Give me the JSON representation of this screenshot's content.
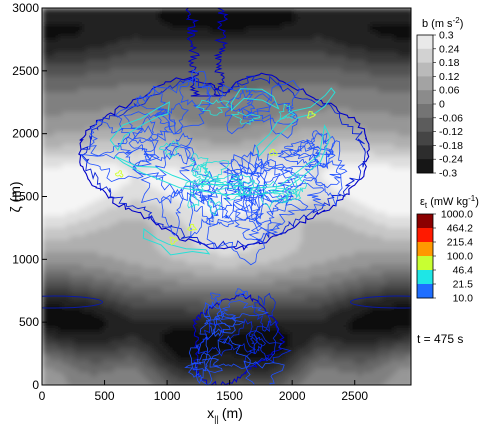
{
  "chart_data": {
    "type": "heatmap",
    "xlabel": "x",
    "xlabel_sub": "||",
    "xlabel_unit": "(m)",
    "ylabel": "ζ (m)",
    "xlim": [
      0,
      2950
    ],
    "ylim": [
      0,
      3000
    ],
    "x_ticks": [
      0,
      500,
      1000,
      1500,
      2000,
      2500
    ],
    "y_ticks": [
      0,
      500,
      1000,
      1500,
      2000,
      2500,
      3000
    ],
    "grid": false,
    "background_field": {
      "name": "b",
      "colorbar_title": "b (m s",
      "colorbar_title_sup": "-2",
      "colorbar_title_end": ")",
      "levels": [
        "0.3",
        "0.24",
        "0.18",
        "0.12",
        "0.06",
        "0",
        "-0.06",
        "-0.12",
        "-0.18",
        "-0.24",
        "-0.3"
      ],
      "colormap": "grayscale (white = 0.3, black = -0.3)",
      "low_bands_zeta": [
        400,
        2900
      ],
      "high_band_zeta": 1600,
      "wavelength_x": 2950
    },
    "overlay_field": {
      "name": "ε_t",
      "colorbar_title": "ε",
      "colorbar_title_sub": "t",
      "colorbar_title_unit": " (mW kg",
      "colorbar_title_sup": "-1",
      "colorbar_title_end": ")",
      "levels": [
        "1000.0",
        "464.2",
        "215.4",
        "100.0",
        "46.4",
        "21.5",
        "10.0"
      ],
      "level_colors": [
        "#8b0000",
        "#ff1a00",
        "#ff9900",
        "#c8ff32",
        "#1ee6e6",
        "#1e6eff",
        "#0000d2"
      ],
      "regions": [
        {
          "label": "upper turbulent patch",
          "zeta_range": [
            980,
            3000
          ],
          "x_range": [
            390,
            2480
          ],
          "max_level": "100.0"
        },
        {
          "label": "lower turbulent patch",
          "zeta_range": [
            0,
            750
          ],
          "x_range": [
            1150,
            1900
          ],
          "max_level": "21.5"
        }
      ]
    },
    "annotation": "t = 475 s"
  }
}
